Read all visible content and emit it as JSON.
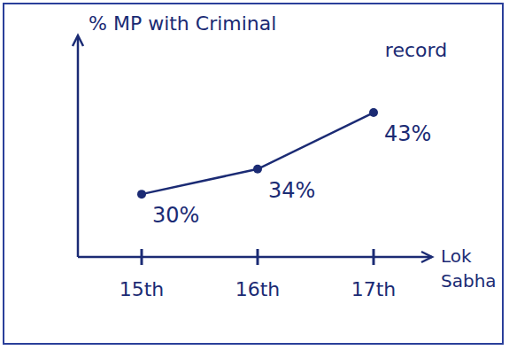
{
  "chart_data": {
    "type": "line",
    "y_label": "% MP with Criminal record",
    "x_label": "Lok Sabha",
    "categories": [
      "15th",
      "16th",
      "17th"
    ],
    "values": [
      30,
      34,
      43
    ],
    "value_labels": [
      "30%",
      "34%",
      "43%"
    ],
    "data_labels": true,
    "ylim": [
      20,
      55
    ],
    "tick_labels": "x",
    "color": "#1b2b74",
    "marker": "circle"
  }
}
